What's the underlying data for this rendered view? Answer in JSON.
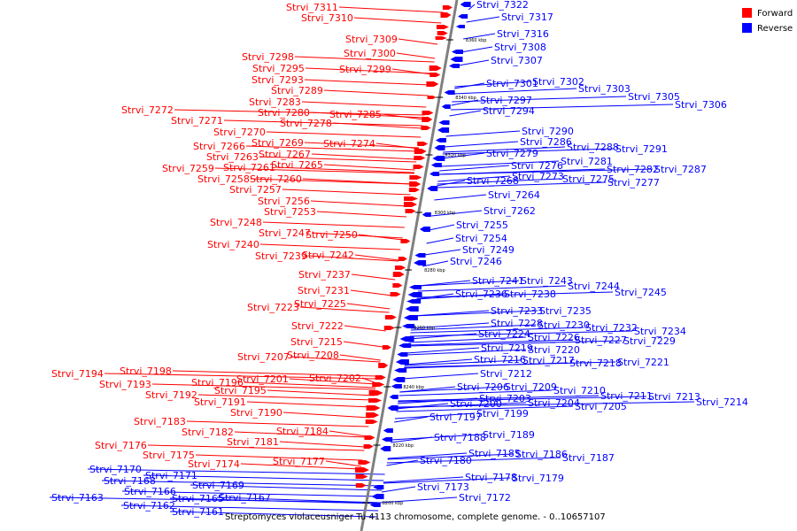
{
  "title": "Streptomyces violaceusniger Tu 4113 chromosome, complete genome. - 0..10657107",
  "legend": [
    {
      "label": "Forward",
      "color": "#ff0000"
    },
    {
      "label": "Reverse",
      "color": "#0000ff"
    }
  ],
  "colors": {
    "forward": "#ff0000",
    "reverse": "#0000ff",
    "backbone": "#808080"
  },
  "ticks": [
    "8360 kbp",
    "8340 kbp",
    "8320 kbp",
    "8300 kbp",
    "8280 kbp",
    "8260 kbp",
    "8240 kbp",
    "8220 kbp",
    "8200 kbp"
  ],
  "forward_genes": [
    "Strvi_7311",
    "Strvi_7310",
    "Strvi_7309",
    "Strvi_7300",
    "Strvi_7298",
    "Strvi_7295",
    "Strvi_7299",
    "Strvi_7293",
    "Strvi_7289",
    "Strvi_7283",
    "Strvi_7280",
    "Strvi_7285",
    "Strvi_7272",
    "Strvi_7278",
    "Strvi_7271",
    "Strvi_7270",
    "Strvi_7269",
    "Strvi_7274",
    "Strvi_7266",
    "Strvi_7263",
    "Strvi_7267",
    "Strvi_7265",
    "Strvi_7259",
    "Strvi_7261",
    "Strvi_7258",
    "Strvi_7260",
    "Strvi_7257",
    "Strvi_7256",
    "Strvi_7253",
    "Strvi_7248",
    "Strvi_7247",
    "Strvi_7250",
    "Strvi_7240",
    "Strvi_7239",
    "Strvi_7242",
    "Strvi_7237",
    "Strvi_7231",
    "Strvi_7225",
    "Strvi_7223",
    "Strvi_7222",
    "Strvi_7215",
    "Strvi_7208",
    "Strvi_7207",
    "Strvi_7198",
    "Strvi_7194",
    "Strvi_7201",
    "Strvi_7202",
    "Strvi_7196",
    "Strvi_7193",
    "Strvi_7195",
    "Strvi_7192",
    "Strvi_7191",
    "Strvi_7190",
    "Strvi_7183",
    "Strvi_7182",
    "Strvi_7184",
    "Strvi_7181",
    "Strvi_7176",
    "Strvi_7175",
    "Strvi_7174",
    "Strvi_7177"
  ],
  "reverse_genes": [
    "Strvi_7322",
    "Strvi_7317",
    "Strvi_7316",
    "Strvi_7308",
    "Strvi_7307",
    "Strvi_7302",
    "Strvi_7301",
    "Strvi_7303",
    "Strvi_7305",
    "Strvi_7306",
    "Strvi_7297",
    "Strvi_7294",
    "Strvi_7290",
    "Strvi_7286",
    "Strvi_7288",
    "Strvi_7291",
    "Strvi_7279",
    "Strvi_7281",
    "Strvi_7276",
    "Strvi_7282",
    "Strvi_7287",
    "Strvi_7273",
    "Strvi_7275",
    "Strvi_7277",
    "Strvi_7268",
    "Strvi_7264",
    "Strvi_7262",
    "Strvi_7255",
    "Strvi_7254",
    "Strvi_7249",
    "Strvi_7246",
    "Strvi_7241",
    "Strvi_7243",
    "Strvi_7244",
    "Strvi_7245",
    "Strvi_7236",
    "Strvi_7238",
    "Strvi_7233",
    "Strvi_7235",
    "Strvi_7228",
    "Strvi_7230",
    "Strvi_7232",
    "Strvi_7234",
    "Strvi_7224",
    "Strvi_7226",
    "Strvi_7227",
    "Strvi_7229",
    "Strvi_7219",
    "Strvi_7220",
    "Strvi_7216",
    "Strvi_7217",
    "Strvi_7218",
    "Strvi_7221",
    "Strvi_7212",
    "Strvi_7206",
    "Strvi_7209",
    "Strvi_7210",
    "Strvi_7211",
    "Strvi_7213",
    "Strvi_7214",
    "Strvi_7203",
    "Strvi_7204",
    "Strvi_7205",
    "Strvi_7200",
    "Strvi_7199",
    "Strvi_7197",
    "Strvi_7189",
    "Strvi_7188",
    "Strvi_7185",
    "Strvi_7186",
    "Strvi_7187",
    "Strvi_7180",
    "Strvi_7178",
    "Strvi_7179",
    "Strvi_7173",
    "Strvi_7172",
    "Strvi_7170",
    "Strvi_7171",
    "Strvi_7168",
    "Strvi_7169",
    "Strvi_7166",
    "Strvi_7163",
    "Strvi_7165",
    "Strvi_7167",
    "Strvi_7162",
    "Strvi_7161"
  ]
}
